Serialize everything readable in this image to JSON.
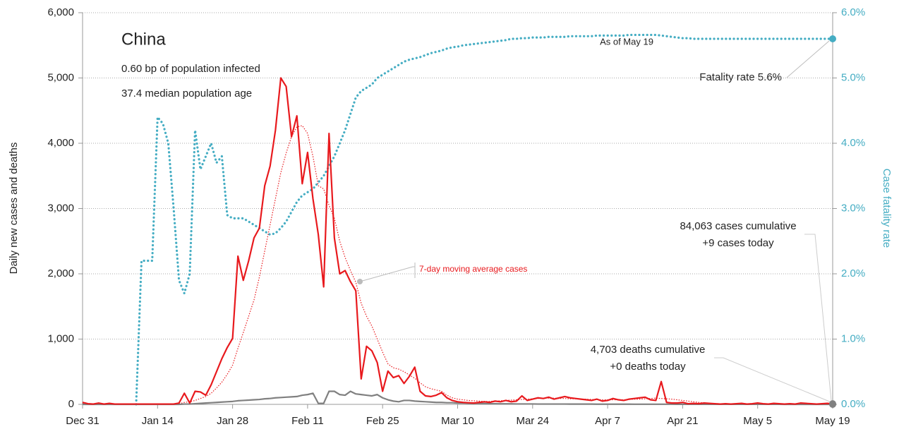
{
  "chart_data": {
    "type": "line",
    "title": "China",
    "annotations": [
      "0.60 bp of population infected",
      "37.4 median population age",
      "As of May 19",
      "Fatality rate 5.6%",
      "84,063 cases cumulative",
      "+9 cases today",
      "4,703 deaths cumulative",
      "+0 deaths today"
    ],
    "y_label": "Daily new cases and deaths",
    "y2_label": "Case fatality rate",
    "categories": [
      "Dec 31",
      null,
      null,
      null,
      null,
      null,
      null,
      null,
      null,
      null,
      null,
      null,
      null,
      null,
      "Jan 14",
      null,
      null,
      null,
      null,
      null,
      null,
      null,
      null,
      null,
      null,
      null,
      null,
      null,
      "Jan 28",
      null,
      null,
      null,
      null,
      null,
      null,
      null,
      null,
      null,
      null,
      null,
      null,
      null,
      "Feb 11",
      null,
      null,
      null,
      null,
      null,
      null,
      null,
      null,
      null,
      null,
      null,
      null,
      null,
      "Feb 25",
      null,
      null,
      null,
      null,
      null,
      null,
      null,
      null,
      null,
      null,
      null,
      null,
      null,
      "Mar 10",
      null,
      null,
      null,
      null,
      null,
      null,
      null,
      null,
      null,
      null,
      null,
      null,
      null,
      "Mar 24",
      null,
      null,
      null,
      null,
      null,
      null,
      null,
      null,
      null,
      null,
      null,
      null,
      null,
      "Apr 7",
      null,
      null,
      null,
      null,
      null,
      null,
      null,
      null,
      null,
      null,
      null,
      null,
      null,
      "Apr 21",
      null,
      null,
      null,
      null,
      null,
      null,
      null,
      null,
      null,
      null,
      null,
      null,
      null,
      "May 5",
      null,
      null,
      null,
      null,
      null,
      null,
      null,
      null,
      null,
      null,
      null,
      null,
      null,
      "May 19"
    ],
    "series": [
      {
        "color": "#e8191d",
        "style": "solid",
        "values": [
          30,
          10,
          5,
          20,
          5,
          15,
          5,
          5,
          5,
          5,
          5,
          5,
          5,
          5,
          5,
          5,
          5,
          5,
          20,
          170,
          20,
          200,
          190,
          140,
          300,
          500,
          700,
          870,
          1010,
          2270,
          1900,
          2200,
          2550,
          2700,
          3350,
          3650,
          4200,
          5000,
          4870,
          4100,
          4420,
          3380,
          3860,
          3150,
          2600,
          1800,
          4150,
          2550,
          2000,
          2050,
          1880,
          1740,
          390,
          890,
          820,
          640,
          200,
          510,
          410,
          440,
          320,
          430,
          570,
          200,
          130,
          120,
          140,
          180,
          100,
          60,
          40,
          30,
          25,
          20,
          30,
          40,
          30,
          50,
          40,
          60,
          40,
          50,
          130,
          60,
          80,
          100,
          90,
          110,
          80,
          100,
          120,
          100,
          90,
          80,
          70,
          60,
          80,
          50,
          60,
          90,
          70,
          60,
          80,
          90,
          100,
          110,
          70,
          60,
          350,
          30,
          20,
          20,
          30,
          10,
          15,
          10,
          20,
          15,
          10,
          5,
          10,
          5,
          10,
          15,
          5,
          10,
          20,
          10,
          5,
          15,
          10,
          5,
          10,
          5,
          20,
          15,
          10,
          5,
          10,
          15,
          9
        ]
      },
      {
        "name": "7-day moving average cases",
        "color": "#e8191d",
        "style": "dotted-thin",
        "values": [
          10,
          10,
          10,
          10,
          10,
          10,
          10,
          10,
          10,
          10,
          10,
          10,
          10,
          10,
          10,
          10,
          10,
          10,
          10,
          30,
          40,
          60,
          90,
          120,
          170,
          250,
          340,
          460,
          600,
          860,
          1100,
          1350,
          1600,
          1950,
          2350,
          2750,
          3150,
          3550,
          3850,
          4100,
          4250,
          4270,
          4150,
          3800,
          3350,
          3300,
          3050,
          2850,
          2500,
          2250,
          2050,
          1870,
          1550,
          1350,
          1200,
          1000,
          800,
          620,
          560,
          540,
          500,
          450,
          400,
          330,
          270,
          240,
          220,
          200,
          140,
          100,
          80,
          70,
          60,
          55,
          50,
          45,
          45,
          50,
          55,
          60,
          65,
          70,
          75,
          80,
          85,
          90,
          95,
          95,
          95,
          90,
          90,
          85,
          85,
          80,
          80,
          75,
          75,
          70,
          70,
          70,
          70,
          70,
          75,
          80,
          80,
          85,
          90,
          95,
          90,
          85,
          80,
          70,
          60,
          50,
          40,
          30,
          20,
          null,
          null,
          null,
          null,
          null,
          null,
          null,
          null,
          null,
          null,
          null,
          null,
          null,
          null,
          null,
          null,
          null,
          null,
          null,
          null,
          null,
          null,
          null,
          null
        ]
      },
      {
        "color": "#808080",
        "style": "solid",
        "values": [
          0,
          0,
          0,
          0,
          0,
          0,
          0,
          0,
          0,
          0,
          0,
          0,
          0,
          0,
          0,
          0,
          0,
          0,
          0,
          5,
          5,
          10,
          15,
          20,
          25,
          30,
          35,
          40,
          45,
          55,
          60,
          65,
          70,
          75,
          85,
          90,
          100,
          105,
          110,
          115,
          120,
          140,
          150,
          170,
          15,
          15,
          200,
          200,
          150,
          140,
          200,
          160,
          150,
          140,
          130,
          150,
          100,
          70,
          50,
          40,
          60,
          60,
          50,
          45,
          40,
          35,
          30,
          30,
          25,
          25,
          20,
          20,
          18,
          15,
          15,
          12,
          10,
          10,
          8,
          8,
          8,
          6,
          6,
          6,
          6,
          5,
          5,
          5,
          5,
          5,
          5,
          4,
          4,
          4,
          4,
          4,
          3,
          3,
          3,
          3,
          3,
          3,
          3,
          2,
          2,
          2,
          2,
          2,
          2,
          2,
          2,
          1,
          1,
          1,
          1,
          1,
          1,
          1,
          1,
          1,
          1,
          1,
          1,
          1,
          1,
          1,
          1,
          1,
          1,
          1,
          1,
          0,
          0,
          0,
          0,
          0,
          0,
          0,
          0,
          0,
          0
        ]
      },
      {
        "color": "#45adc3",
        "style": "dotted",
        "axis": "y2",
        "values": [
          null,
          null,
          null,
          null,
          null,
          null,
          null,
          null,
          null,
          null,
          0,
          2.2,
          2.2,
          2.2,
          4.4,
          4.3,
          4.0,
          3.0,
          1.9,
          1.7,
          2.0,
          4.2,
          3.6,
          3.8,
          4.0,
          3.7,
          3.8,
          2.9,
          2.85,
          2.85,
          2.85,
          2.8,
          2.75,
          2.7,
          2.65,
          2.6,
          2.62,
          2.7,
          2.8,
          2.95,
          3.1,
          3.2,
          3.25,
          3.3,
          3.4,
          3.5,
          3.65,
          3.8,
          4.0,
          4.2,
          4.45,
          4.7,
          4.8,
          4.85,
          4.9,
          5.0,
          5.05,
          5.1,
          5.15,
          5.2,
          5.25,
          5.28,
          5.3,
          5.32,
          5.35,
          5.38,
          5.4,
          5.42,
          5.45,
          5.47,
          5.48,
          5.5,
          5.51,
          5.52,
          5.53,
          5.54,
          5.55,
          5.56,
          5.57,
          5.58,
          5.6,
          5.6,
          5.61,
          5.61,
          5.62,
          5.62,
          5.62,
          5.63,
          5.63,
          5.63,
          5.63,
          5.64,
          5.64,
          5.64,
          5.64,
          5.64,
          5.65,
          5.65,
          5.65,
          5.65,
          5.65,
          5.65,
          5.66,
          5.66,
          5.66,
          5.66,
          5.66,
          5.66,
          5.65,
          5.64,
          5.63,
          5.62,
          5.61,
          5.61,
          5.6,
          5.6,
          5.6,
          5.6,
          5.6,
          5.6,
          5.6,
          5.6,
          5.6,
          5.6,
          5.6,
          5.6,
          5.6,
          5.6,
          5.6,
          5.6,
          5.6,
          5.6,
          5.6,
          5.6,
          5.6,
          5.6,
          5.6,
          5.6,
          5.6,
          5.6,
          5.6
        ]
      }
    ],
    "ylim": [
      0,
      6000
    ],
    "yticks": [
      0,
      {
        "value": 1000,
        "label": "1,000"
      },
      {
        "value": 2000,
        "label": "2,000"
      },
      {
        "value": 3000,
        "label": "3,000"
      },
      {
        "value": 4000,
        "label": "4,000"
      },
      {
        "value": 5000,
        "label": "5,000"
      },
      {
        "value": 6000,
        "label": "6,000"
      }
    ],
    "y2lim": [
      0,
      6
    ],
    "y2ticks": [
      {
        "value": 0,
        "label": "0.0%"
      },
      {
        "value": 1,
        "label": "1.0%"
      },
      {
        "value": 2,
        "label": "2.0%"
      },
      {
        "value": 3,
        "label": "3.0%"
      },
      {
        "value": 4,
        "label": "4.0%"
      },
      {
        "value": 5,
        "label": "5.0%"
      },
      {
        "value": 6,
        "label": "6.0%"
      }
    ],
    "grid": true
  }
}
